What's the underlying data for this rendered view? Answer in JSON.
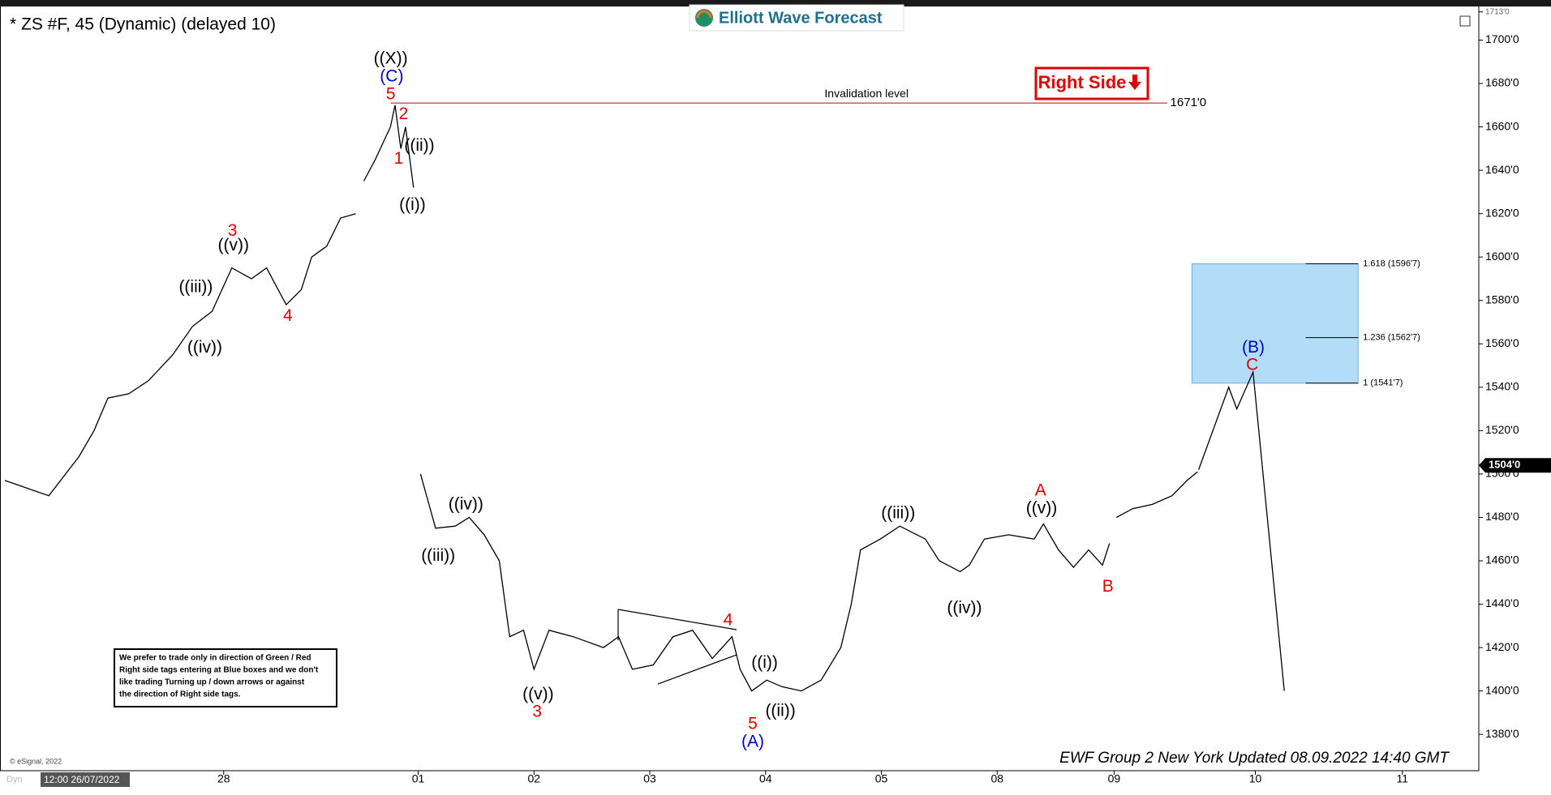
{
  "header": {
    "title": "* ZS #F, 45 (Dynamic) (delayed 10)",
    "logo": "Elliott Wave Forecast",
    "tag": "Right Side"
  },
  "chart_data": {
    "type": "line",
    "xlim": [
      -3.57,
      9.16
    ],
    "ylim": [
      1364,
      1714
    ],
    "xticks": [
      {
        "value": -1.68,
        "label": "28"
      },
      {
        "value": 0,
        "label": "01"
      },
      {
        "value": 1,
        "label": "02"
      },
      {
        "value": 2,
        "label": "03"
      },
      {
        "value": 3,
        "label": "04"
      },
      {
        "value": 4,
        "label": "05"
      },
      {
        "value": 5,
        "label": "08"
      },
      {
        "value": 6.01,
        "label": "09"
      },
      {
        "value": 7.23,
        "label": "10"
      },
      {
        "value": 8.5,
        "label": "11"
      }
    ],
    "yticks": [
      {
        "value": 1380,
        "label": "1380'0"
      },
      {
        "value": 1400,
        "label": "1400'0"
      },
      {
        "value": 1420,
        "label": "1420'0"
      },
      {
        "value": 1440,
        "label": "1440'0"
      },
      {
        "value": 1460,
        "label": "1460'0"
      },
      {
        "value": 1480,
        "label": "1480'0"
      },
      {
        "value": 1500,
        "label": "1500'0"
      },
      {
        "value": 1520,
        "label": "1520'0"
      },
      {
        "value": 1540,
        "label": "1540'0"
      },
      {
        "value": 1560,
        "label": "1560'0"
      },
      {
        "value": 1580,
        "label": "1580'0"
      },
      {
        "value": 1600,
        "label": "1600'0"
      },
      {
        "value": 1620,
        "label": "1620'0"
      },
      {
        "value": 1640,
        "label": "1640'0"
      },
      {
        "value": 1660,
        "label": "1660'0"
      },
      {
        "value": 1680,
        "label": "1680'0"
      },
      {
        "value": 1700,
        "label": "1700'0"
      },
      {
        "value": 1713,
        "label": "1713'0"
      }
    ],
    "series": [
      {
        "color": "#000000",
        "x": [
          -3.57,
          -3.19,
          -2.93,
          -2.8,
          -2.68,
          -2.5,
          -2.33,
          -2.12,
          -1.95,
          -1.78,
          -1.61,
          -1.44,
          -1.31,
          -1.14,
          -1.01,
          -0.92,
          -0.79,
          -0.67,
          -0.54,
          -0.5,
          -0.47,
          -0.37,
          -0.24,
          -0.2,
          -0.15,
          -0.11,
          -0.04,
          -0.02,
          0.02,
          0.15,
          0.32,
          0.44,
          0.57,
          0.7,
          0.79,
          0.91,
          1.0,
          1.13,
          1.34,
          1.6,
          1.73,
          1.85,
          2.03,
          2.2,
          2.37,
          2.54,
          2.71,
          2.78,
          2.88,
          3.01,
          3.14,
          3.31,
          3.48,
          3.65,
          3.74,
          3.82,
          3.99,
          4.16,
          4.38,
          4.5,
          4.68,
          4.76,
          4.89,
          5.1,
          5.32,
          5.4,
          5.53,
          5.66,
          5.79,
          5.91,
          5.97,
          6.0,
          6.03,
          6.17,
          6.34,
          6.51,
          6.64,
          6.73
        ],
        "values": [
          1497,
          1490,
          1508,
          1520,
          1535,
          1537,
          1543,
          1555,
          1568,
          1575,
          1595,
          1590,
          1595,
          1578,
          1585,
          1600,
          1605,
          1618,
          1620,
          null,
          1635,
          1645,
          1660,
          1670,
          1650,
          1660,
          1632,
          null,
          1500,
          1475,
          1476,
          1480,
          1472,
          1460,
          1425,
          1428,
          1410,
          1428,
          1425,
          1420,
          1425,
          1410,
          1412,
          1425,
          1428,
          1415,
          1425,
          1410,
          1400,
          1405,
          1402,
          1400,
          1405,
          1420,
          1440,
          1465,
          1470,
          1476,
          1470,
          1460,
          1455,
          1458,
          1470,
          1472,
          1470,
          1477,
          1465,
          1457,
          1465,
          1458,
          1468,
          null,
          1480,
          1484,
          1486,
          1490,
          1497,
          1501
        ]
      },
      {
        "color": "#000000",
        "x": [
          6.74,
          7.0,
          7.07,
          7.21,
          7.48
        ],
        "values": [
          1502,
          1540,
          1530,
          1547,
          1400
        ]
      }
    ],
    "last_price": {
      "value": 1504,
      "label": "1504'0"
    },
    "invalidation": {
      "text": "Invalidation level",
      "value": 1671,
      "label": "1671'0",
      "color": "#c00000"
    },
    "target_zone": {
      "color": "#b3dcf8",
      "levels": [
        {
          "value": 1596.875,
          "label": "1.618 (1596'7)"
        },
        {
          "value": 1562.875,
          "label": "1.236 (1562'7)"
        },
        {
          "value": 1541.875,
          "label": "1 (1541'7)"
        }
      ]
    },
    "annotations": [
      {
        "text": "((X))",
        "color": "#000000"
      },
      {
        "text": "(C)",
        "color": "#0000cc"
      },
      {
        "text": "5",
        "color": "#e00000"
      },
      {
        "text": "2",
        "color": "#e00000"
      },
      {
        "text": "1",
        "color": "#e00000"
      },
      {
        "text": "((ii))",
        "color": "#000000"
      },
      {
        "text": "((i))",
        "color": "#000000"
      },
      {
        "text": "3",
        "color": "#e00000"
      },
      {
        "text": "((v))",
        "color": "#000000"
      },
      {
        "text": "((iii))",
        "color": "#000000"
      },
      {
        "text": "((iv))",
        "color": "#000000"
      },
      {
        "text": "4",
        "color": "#e00000"
      },
      {
        "text": "((iv))",
        "color": "#000000"
      },
      {
        "text": "((iii))",
        "color": "#000000"
      },
      {
        "text": "((v))",
        "color": "#000000"
      },
      {
        "text": "3",
        "color": "#e00000"
      },
      {
        "text": "4",
        "color": "#e00000"
      },
      {
        "text": "((i))",
        "color": "#000000"
      },
      {
        "text": "((ii))",
        "color": "#000000"
      },
      {
        "text": "5",
        "color": "#e00000"
      },
      {
        "text": "(A)",
        "color": "#0000cc"
      },
      {
        "text": "((iii))",
        "color": "#000000"
      },
      {
        "text": "((iv))",
        "color": "#000000"
      },
      {
        "text": "A",
        "color": "#e00000"
      },
      {
        "text": "((v))",
        "color": "#000000"
      },
      {
        "text": "B",
        "color": "#e00000"
      },
      {
        "text": "(B)",
        "color": "#0000cc"
      },
      {
        "text": "C",
        "color": "#e00000"
      }
    ]
  },
  "note": {
    "lines": [
      "We prefer to trade only in direction of Green / Red",
      "Right side tags entering at Blue boxes and we don't",
      "like trading Turning up / down arrows or against",
      "the direction of Right side tags."
    ]
  },
  "footer": {
    "text": "EWF Group 2 New York Updated 08.09.2022 14:40 GMT",
    "copyright": "© eSignal, 2022",
    "cursor_time": "12:00 26/07/2022",
    "mode": "Dyn"
  }
}
